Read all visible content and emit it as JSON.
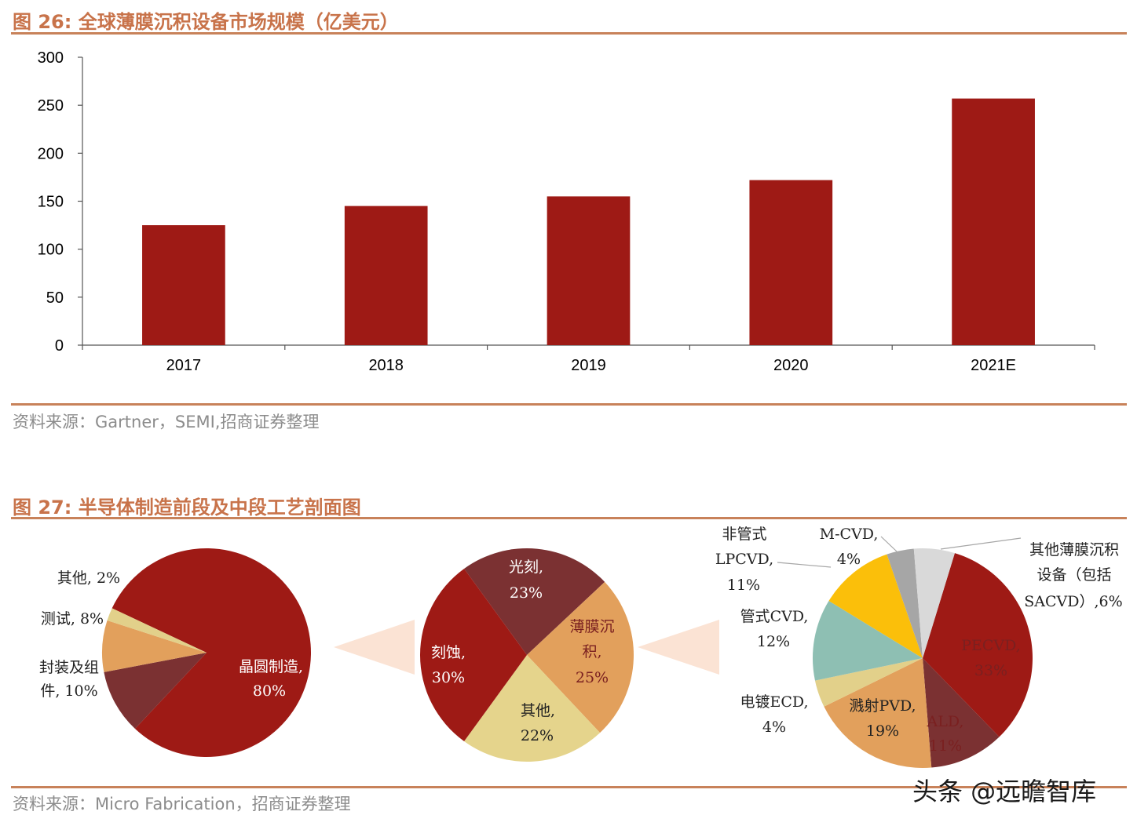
{
  "fig26": {
    "title": "图 26:  全球薄膜沉积设备市场规模（亿美元）",
    "source": "资料来源：Gartner，SEMI,招商证券整理"
  },
  "fig27": {
    "title": "图 27:  半导体制造前段及中段工艺剖面图",
    "source": "资料来源：Micro Fabrication，招商证券整理"
  },
  "watermark": "头条 @远瞻智库",
  "colors": {
    "bar": "#9e1a15",
    "accent": "#c8734a",
    "rule": "#c8825a"
  },
  "chart_data": [
    {
      "type": "bar",
      "categories": [
        "2017",
        "2018",
        "2019",
        "2020",
        "2021E"
      ],
      "values": [
        125,
        145,
        155,
        172,
        257
      ],
      "title": "全球薄膜沉积设备市场规模（亿美元）",
      "ylim": [
        0,
        300
      ],
      "yticks": [
        "0",
        "50",
        "100",
        "150",
        "200",
        "250",
        "300"
      ],
      "grid": false
    },
    {
      "type": "pie",
      "slices": [
        {
          "label": "晶圆制造,",
          "pct": "80%",
          "value": 80,
          "color": "#9e1a15"
        },
        {
          "label": "封装及组",
          "label2": "件,",
          "pct": "10%",
          "value": 10,
          "color": "#7b3132"
        },
        {
          "label": "测试,",
          "pct": "8%",
          "value": 8,
          "color": "#e2a05c"
        },
        {
          "label": "其他,",
          "pct": "2%",
          "value": 2,
          "color": "#e2d08a"
        }
      ]
    },
    {
      "type": "pie",
      "slices": [
        {
          "label": "光刻,",
          "pct": "23%",
          "value": 23,
          "color": "#7b3132"
        },
        {
          "label": "薄膜沉",
          "label2": "积,",
          "pct": "25%",
          "value": 25,
          "color": "#e2a05c"
        },
        {
          "label": "其他,",
          "pct": "22%",
          "value": 22,
          "color": "#e5d48c"
        },
        {
          "label": "刻蚀,",
          "pct": "30%",
          "value": 30,
          "color": "#9e1a15"
        }
      ]
    },
    {
      "type": "pie",
      "slices": [
        {
          "label": "PECVD,",
          "pct": "33%",
          "value": 33,
          "color": "#9e1a15"
        },
        {
          "label": "ALD,",
          "pct": "11%",
          "value": 11,
          "color": "#7b3132"
        },
        {
          "label": "溅射PVD,",
          "pct": "19%",
          "value": 19,
          "color": "#e2a05c"
        },
        {
          "label": "电镀ECD,",
          "pct": "4%",
          "value": 4,
          "color": "#e2d08a"
        },
        {
          "label": "管式CVD,",
          "pct": "12%",
          "value": 12,
          "color": "#8ebfb3"
        },
        {
          "label": "非管式",
          "label2": "LPCVD,",
          "pct": "11%",
          "value": 11,
          "color": "#fbbf0a"
        },
        {
          "label": "M-CVD,",
          "pct": "4%",
          "value": 4,
          "color": "#a6a6a6"
        },
        {
          "label": "其他薄膜沉积",
          "label2": "设备（包括",
          "label3": "SACVD）,",
          "pct": "6%",
          "value": 6,
          "color": "#d9d9d9"
        }
      ]
    }
  ]
}
